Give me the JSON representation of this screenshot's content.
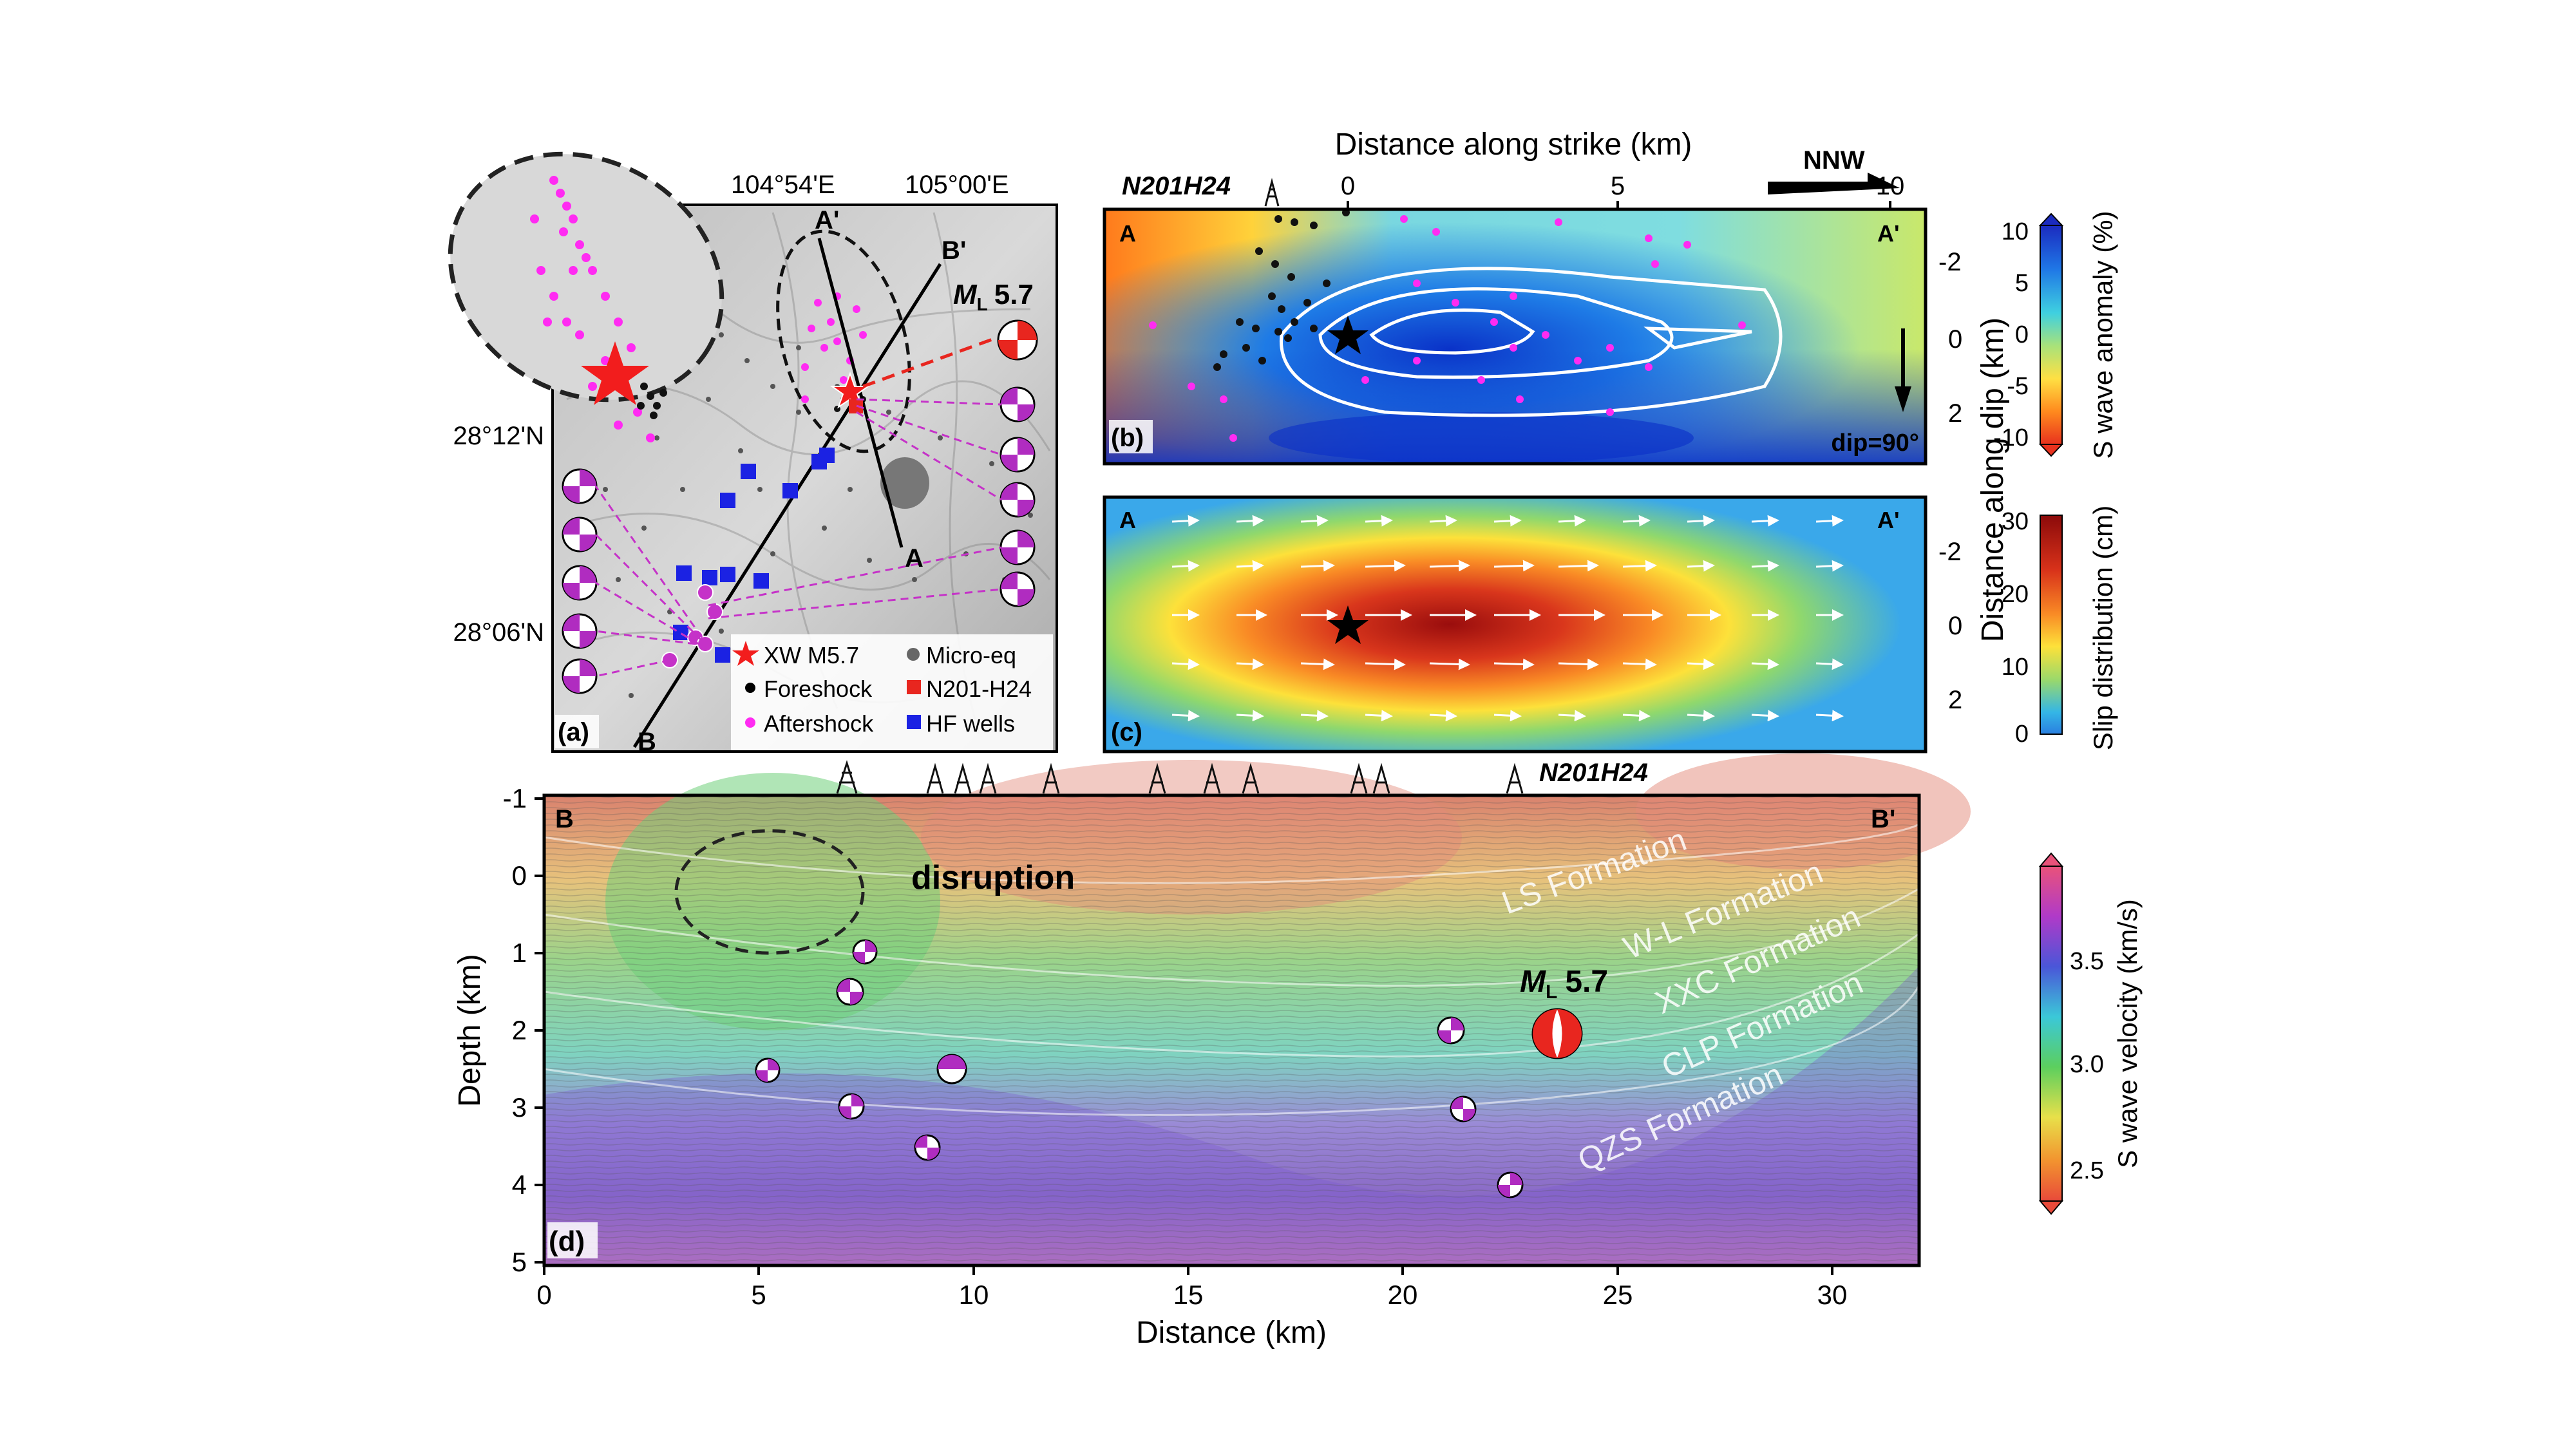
{
  "panel_a": {
    "letter": "(a)",
    "lon_ticks": [
      "104°54'E",
      "105°00'E"
    ],
    "lat_ticks": [
      "28°12'N",
      "28°06'N"
    ],
    "profiles": {
      "a": "A",
      "a_prime": "A'",
      "b": "B",
      "b_prime": "B'"
    },
    "magnitude_prefix": "M",
    "magnitude_sub": "L",
    "magnitude_value": "5.7",
    "legend": [
      {
        "label": "XW M5.7",
        "symbol": "red-star"
      },
      {
        "label": "Micro-eq",
        "symbol": "gray-dot"
      },
      {
        "label": "Foreshock",
        "symbol": "black-dot"
      },
      {
        "label": "N201-H24",
        "symbol": "red-square"
      },
      {
        "label": "Aftershock",
        "symbol": "magenta-dot"
      },
      {
        "label": "HF wells",
        "symbol": "blue-square"
      }
    ]
  },
  "panel_b": {
    "letter": "(b)",
    "corner_left": "A",
    "corner_right": "A'",
    "top_axis_label": "Distance along strike (km)",
    "top_ticks": [
      "0",
      "5",
      "10"
    ],
    "well_name": "N201H24",
    "direction": "NNW",
    "dip_label": "dip=90°",
    "right_ticks": [
      "-2",
      "0",
      "2"
    ]
  },
  "panel_c": {
    "letter": "(c)",
    "corner_left": "A",
    "corner_right": "A'",
    "right_ticks": [
      "-2",
      "0",
      "2"
    ]
  },
  "shared_right_axis_label": "Distance along dip (km)",
  "colorbar_b": {
    "label": "S wave anomaly (%)",
    "ticks": [
      "10",
      "5",
      "0",
      "-5",
      "-10"
    ],
    "colors": [
      "#1b2bbf",
      "#1f77e6",
      "#3fd0e0",
      "#a8e27a",
      "#ffe043",
      "#ff8a1e",
      "#e8321e"
    ]
  },
  "colorbar_c": {
    "label": "Slip distribution (cm)",
    "ticks": [
      "30",
      "20",
      "10",
      "0"
    ],
    "colors": [
      "#8b0a0a",
      "#d8321a",
      "#f98a25",
      "#fde13a",
      "#9bd96a",
      "#34b6e6",
      "#2a7fe0"
    ]
  },
  "panel_d": {
    "letter": "(d)",
    "corner_left": "B",
    "corner_right": "B'",
    "well_name": "N201H24",
    "disruption_label": "disruption",
    "magnitude_prefix": "M",
    "magnitude_sub": "L",
    "magnitude_value": "5.7",
    "formations": [
      "LS Formation",
      "W-L Formation",
      "XXC Formation",
      "CLP Formation",
      "QZS Formation"
    ],
    "x_axis_label": "Distance (km)",
    "y_axis_label": "Depth (km)",
    "x_ticks": [
      "0",
      "5",
      "10",
      "15",
      "20",
      "25",
      "30"
    ],
    "y_ticks": [
      "-1",
      "0",
      "1",
      "2",
      "3",
      "4",
      "5"
    ]
  },
  "colorbar_d": {
    "label": "S wave velocity (km/s)",
    "ticks": [
      "3.5",
      "3.0",
      "2.5"
    ],
    "colors": [
      "#e9527a",
      "#b03ac8",
      "#4a56d8",
      "#3bc8d8",
      "#5ccf5e",
      "#e8e04a",
      "#f2932f",
      "#e84a3a"
    ]
  }
}
